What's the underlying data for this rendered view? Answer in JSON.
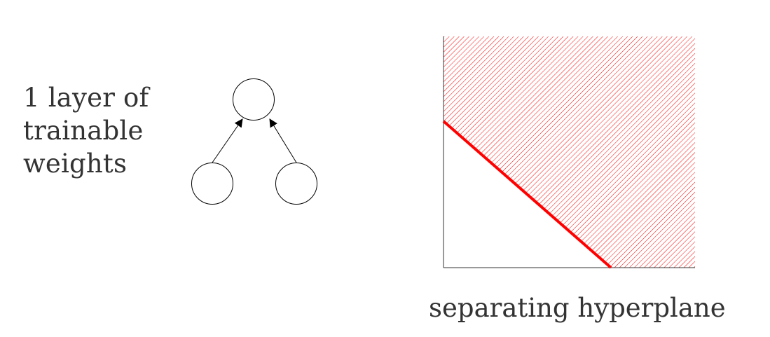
{
  "network": {
    "label_lines": [
      "1 layer of",
      "trainable",
      "weights"
    ],
    "input_nodes": 2,
    "output_nodes": 1
  },
  "plot": {
    "caption": "separating hyperplane",
    "boundary_color": "#ff0000",
    "hatch_color": "#ff0000",
    "axis_color": "#333333"
  }
}
